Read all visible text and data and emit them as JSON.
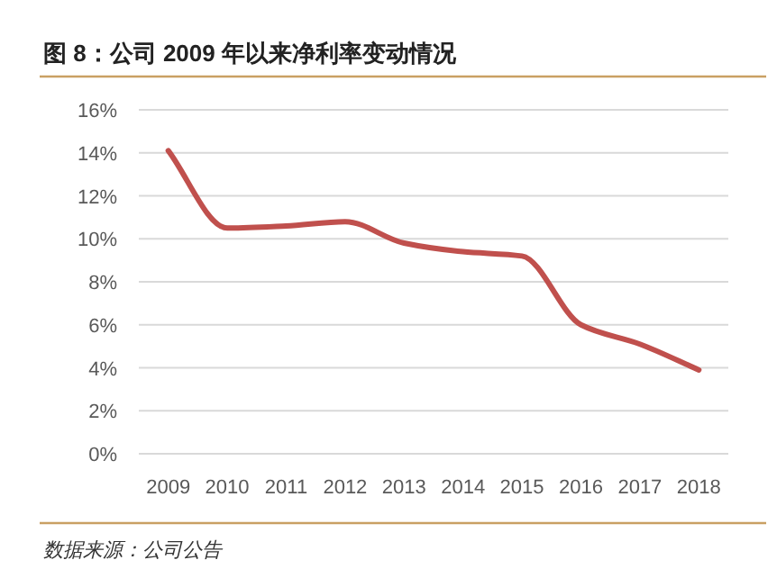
{
  "chart_data": {
    "type": "line",
    "title": "图 8：公司 2009 年以来净利率变动情况",
    "categories": [
      "2009",
      "2010",
      "2011",
      "2012",
      "2013",
      "2014",
      "2015",
      "2016",
      "2017",
      "2018"
    ],
    "series": [
      {
        "color": "#c0504d",
        "values": [
          14.1,
          10.5,
          10.6,
          10.8,
          9.8,
          9.4,
          9.2,
          6.0,
          5.1,
          3.9
        ]
      }
    ],
    "ylim": [
      0,
      16
    ],
    "yticks": [
      {
        "value": 0,
        "label": "0%"
      },
      {
        "value": 2,
        "label": "2%"
      },
      {
        "value": 4,
        "label": "4%"
      },
      {
        "value": 6,
        "label": "6%"
      },
      {
        "value": 8,
        "label": "8%"
      },
      {
        "value": 10,
        "label": "10%"
      },
      {
        "value": 12,
        "label": "12%"
      },
      {
        "value": 14,
        "label": "14%"
      },
      {
        "value": 16,
        "label": "16%"
      }
    ],
    "grid": "y",
    "marker": "none",
    "line_style": "solid",
    "annotations": [
      "数据来源：公司公告"
    ]
  }
}
